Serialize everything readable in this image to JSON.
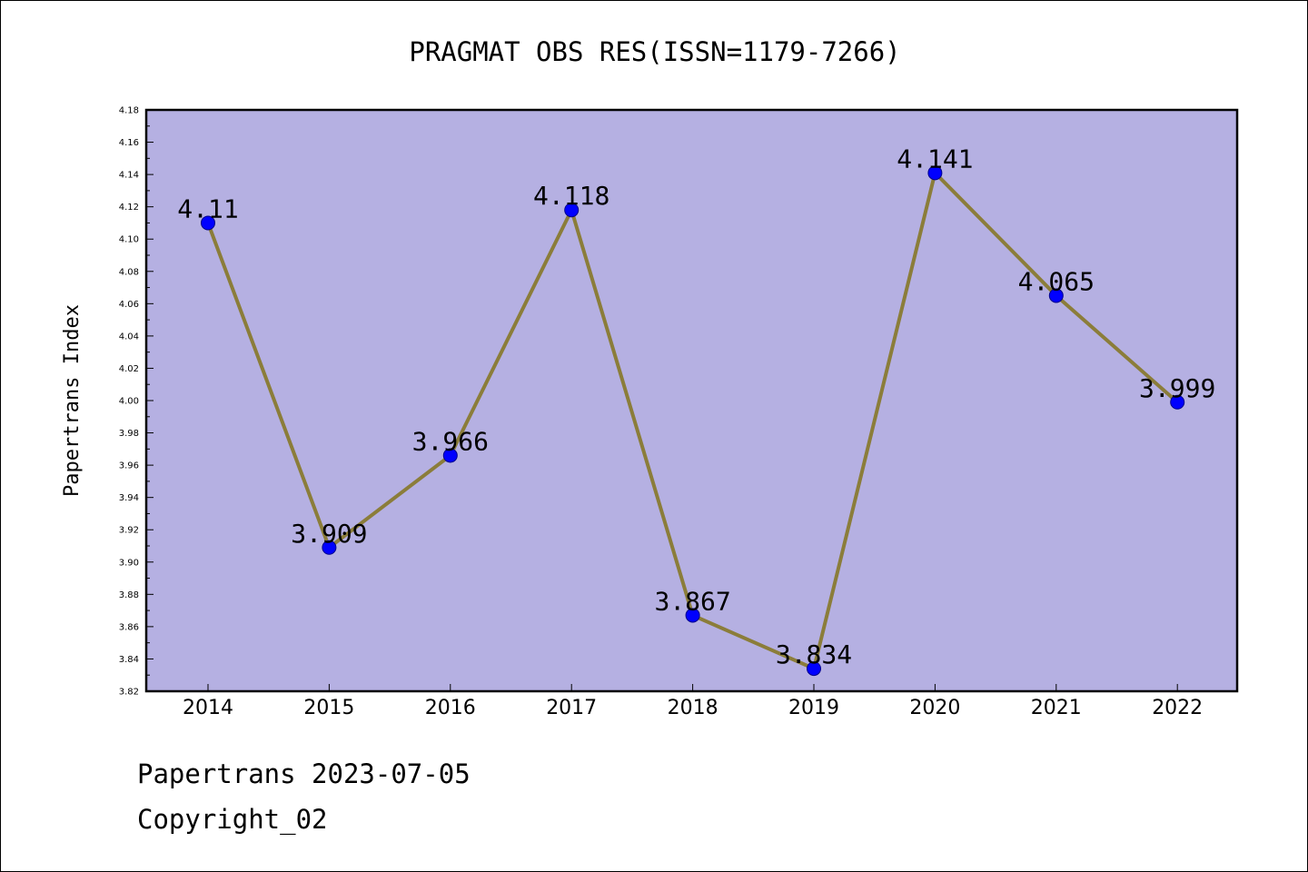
{
  "chart_data": {
    "type": "line",
    "title": "PRAGMAT OBS RES(ISSN=1179-7266)",
    "xlabel": "",
    "ylabel": "Papertrans Index",
    "categories": [
      "2014",
      "2015",
      "2016",
      "2017",
      "2018",
      "2019",
      "2020",
      "2021",
      "2022"
    ],
    "series": [
      {
        "values": [
          4.11,
          3.909,
          3.966,
          4.118,
          3.867,
          3.834,
          4.141,
          4.065,
          3.999
        ],
        "data_labels": [
          "4.11",
          "3.909",
          "3.966",
          "4.118",
          "3.867",
          "3.834",
          "4.141",
          "4.065",
          "3.999"
        ]
      }
    ],
    "ylim": [
      3.82,
      4.18
    ],
    "yticks": [
      "3.82",
      "3.84",
      "3.86",
      "3.88",
      "3.90",
      "3.92",
      "3.94",
      "3.96",
      "3.98",
      "4.00",
      "4.02",
      "4.04",
      "4.06",
      "4.08",
      "4.10",
      "4.12",
      "4.14",
      "4.16",
      "4.18"
    ],
    "grid": false,
    "legend": "none",
    "colors": {
      "plot_background": "#b5b0e2",
      "line": "#8b7d3a",
      "marker": "#0000ff",
      "axes": "#000000"
    }
  },
  "footer": {
    "date_line": "Papertrans 2023-07-05",
    "copyright_line": "Copyright_02"
  }
}
